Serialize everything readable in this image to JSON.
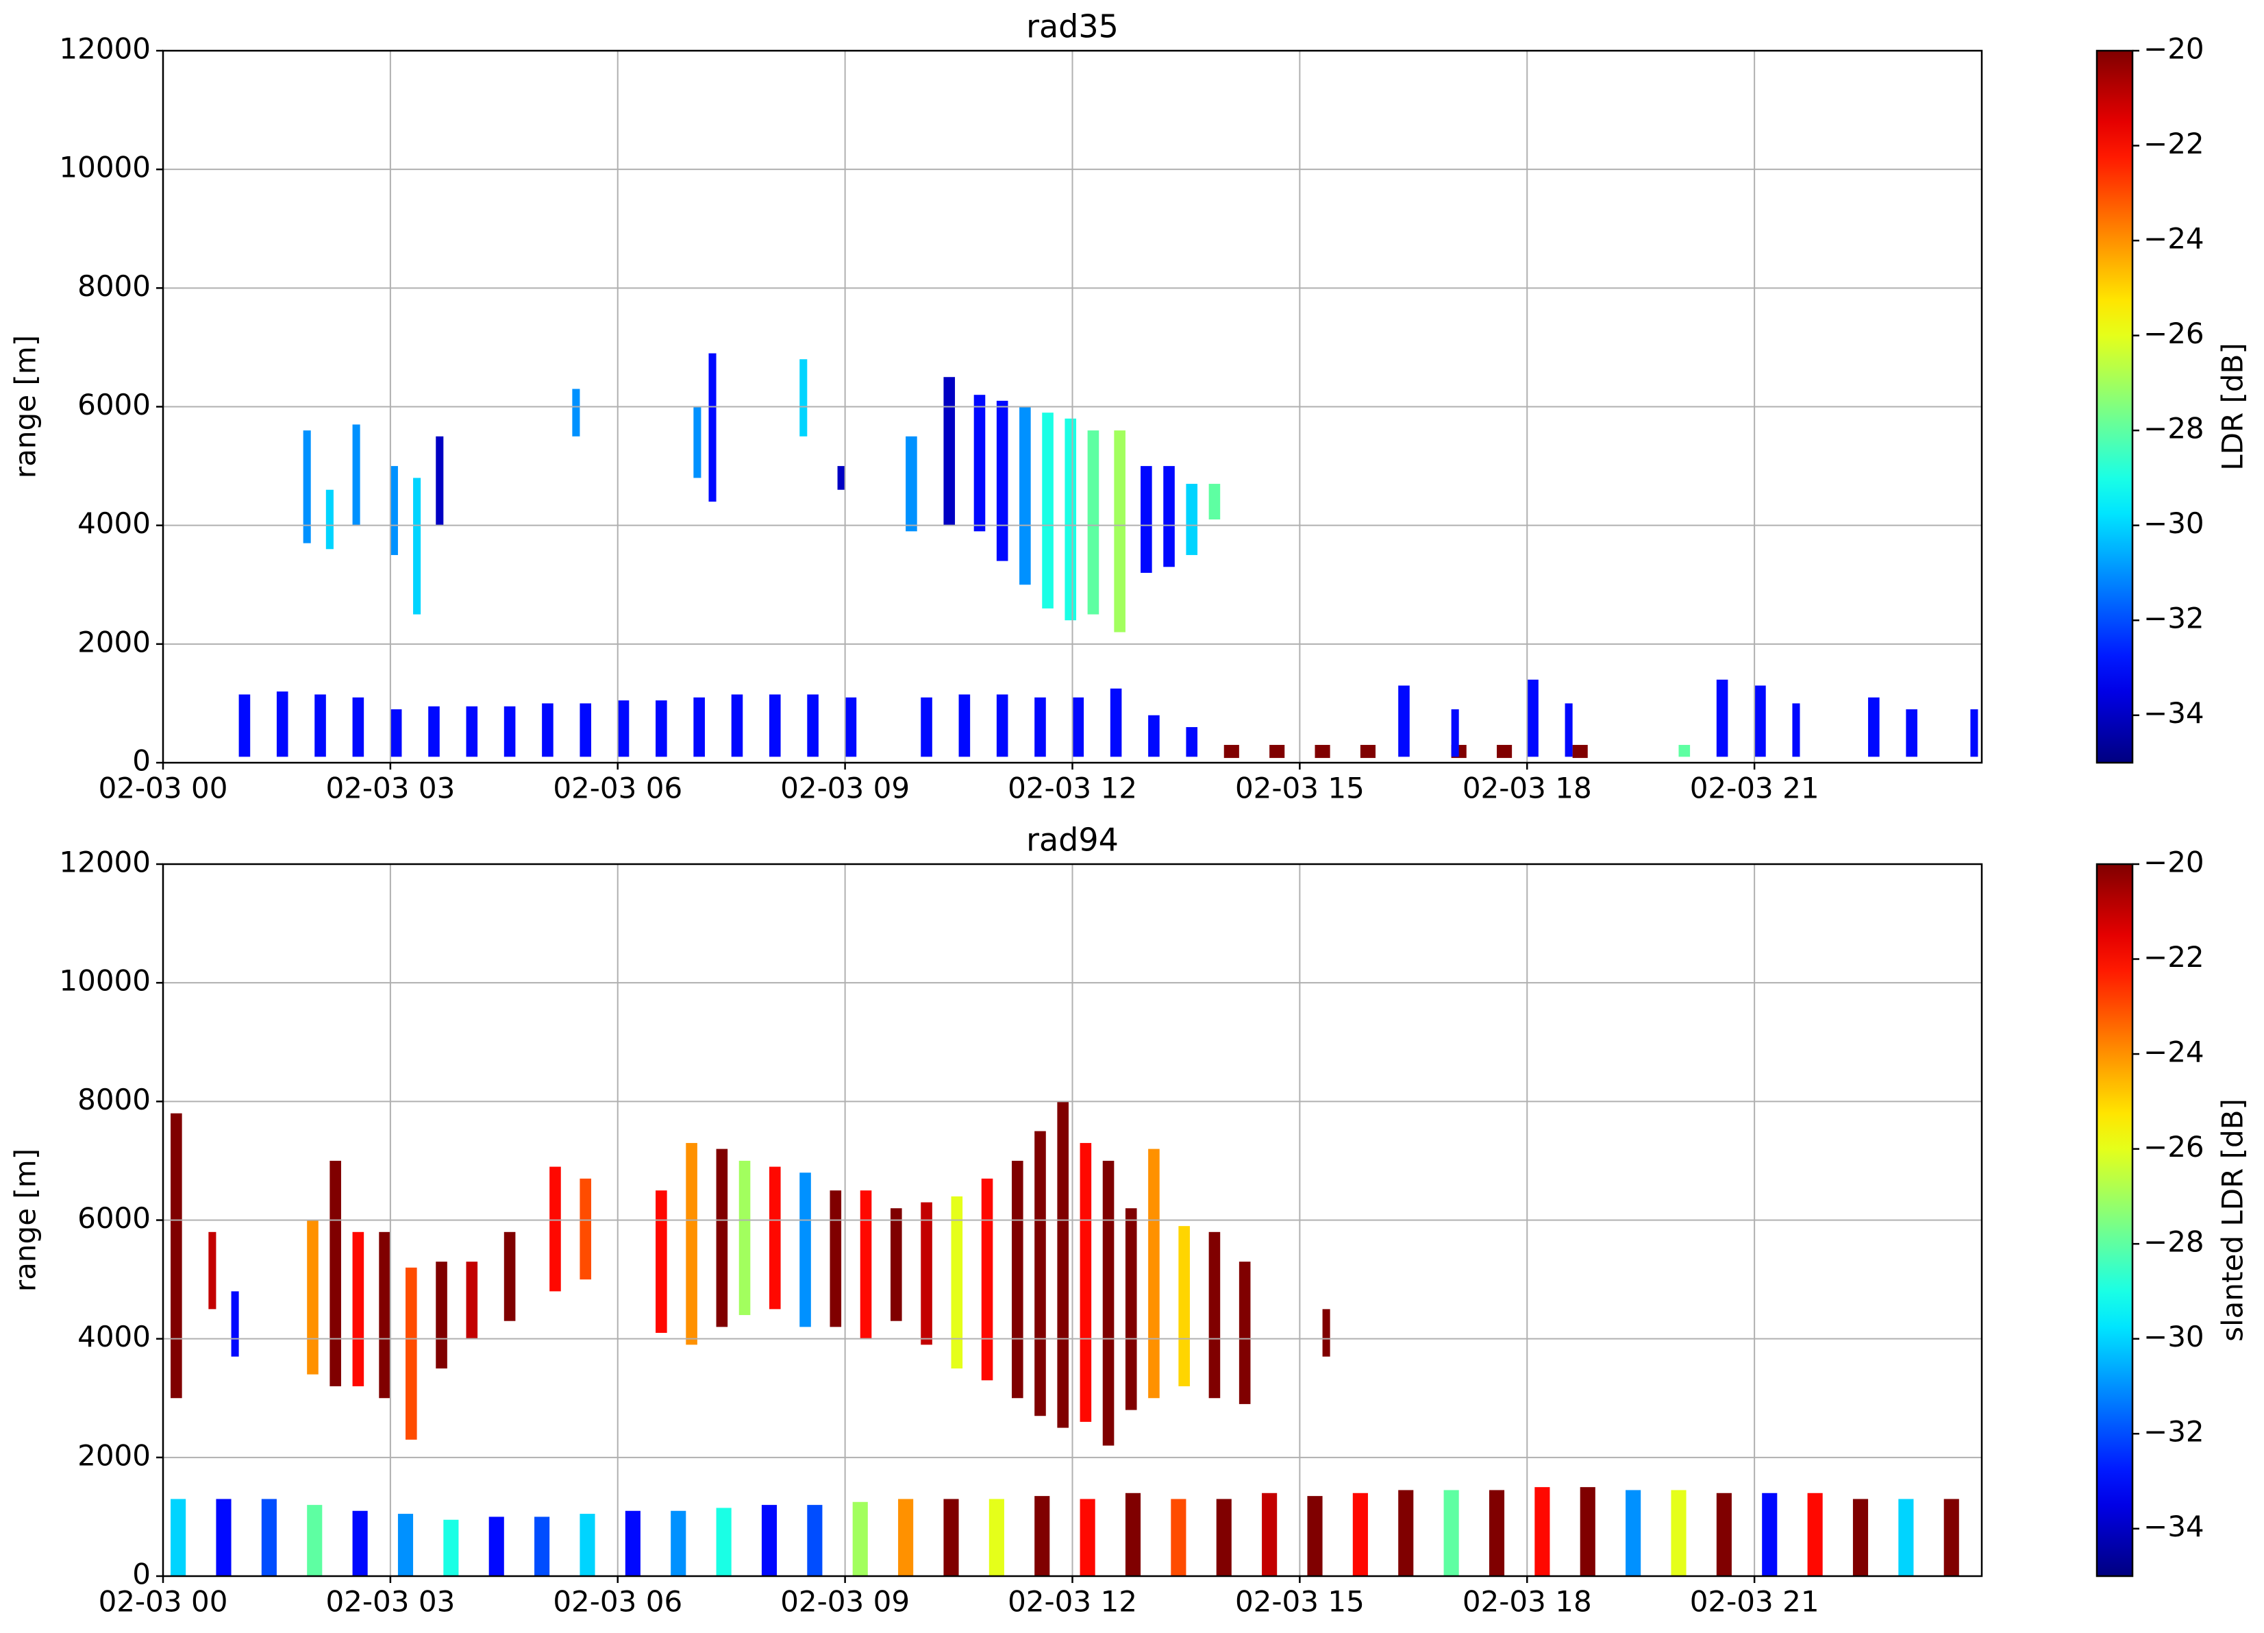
{
  "chart_data": [
    {
      "type": "heatmap",
      "title": "rad35",
      "ylabel": "range [m]",
      "colorbar_label": "LDR [dB]",
      "colormap": "jet",
      "grid": true,
      "xlim": [
        0,
        24
      ],
      "xticks": [
        {
          "value": 0,
          "label": "02-03 00"
        },
        {
          "value": 3,
          "label": "02-03 03"
        },
        {
          "value": 6,
          "label": "02-03 06"
        },
        {
          "value": 9,
          "label": "02-03 09"
        },
        {
          "value": 12,
          "label": "02-03 12"
        },
        {
          "value": 15,
          "label": "02-03 15"
        },
        {
          "value": 18,
          "label": "02-03 18"
        },
        {
          "value": 21,
          "label": "02-03 21"
        }
      ],
      "ylim": [
        0,
        12000
      ],
      "yticks": [
        0,
        2000,
        4000,
        6000,
        8000,
        10000,
        12000
      ],
      "clim": [
        -35,
        -20
      ],
      "cticks": [
        {
          "value": -34,
          "label": "−34"
        },
        {
          "value": -32,
          "label": "−32"
        },
        {
          "value": -30,
          "label": "−30"
        },
        {
          "value": -28,
          "label": "−28"
        },
        {
          "value": -26,
          "label": "−26"
        },
        {
          "value": -24,
          "label": "−24"
        },
        {
          "value": -22,
          "label": "−22"
        },
        {
          "value": -20,
          "label": "−20"
        }
      ],
      "cells": [
        [
          1.0,
          1.15,
          100,
          1150,
          -33
        ],
        [
          1.5,
          1.65,
          100,
          1200,
          -33
        ],
        [
          2.0,
          2.15,
          100,
          1150,
          -33
        ],
        [
          2.5,
          2.65,
          100,
          1100,
          -33
        ],
        [
          3.0,
          3.15,
          100,
          900,
          -33
        ],
        [
          3.5,
          3.65,
          100,
          950,
          -33
        ],
        [
          4.0,
          4.15,
          100,
          950,
          -33
        ],
        [
          4.5,
          4.65,
          100,
          950,
          -33
        ],
        [
          5.0,
          5.15,
          100,
          1000,
          -33
        ],
        [
          5.5,
          5.65,
          100,
          1000,
          -33
        ],
        [
          6.0,
          6.15,
          100,
          1050,
          -33
        ],
        [
          6.5,
          6.65,
          100,
          1050,
          -33
        ],
        [
          7.0,
          7.15,
          100,
          1100,
          -33
        ],
        [
          7.5,
          7.65,
          100,
          1150,
          -33
        ],
        [
          8.0,
          8.15,
          100,
          1150,
          -33
        ],
        [
          8.5,
          8.65,
          100,
          1150,
          -33
        ],
        [
          9.0,
          9.15,
          100,
          1100,
          -33
        ],
        [
          10.0,
          10.15,
          100,
          1100,
          -33
        ],
        [
          10.5,
          10.65,
          100,
          1150,
          -33
        ],
        [
          11.0,
          11.15,
          100,
          1150,
          -33
        ],
        [
          11.5,
          11.65,
          100,
          1100,
          -33
        ],
        [
          12.0,
          12.15,
          100,
          1100,
          -33
        ],
        [
          12.5,
          12.65,
          100,
          1250,
          -33
        ],
        [
          13.0,
          13.15,
          100,
          800,
          -33
        ],
        [
          13.5,
          13.65,
          100,
          600,
          -33
        ],
        [
          14.0,
          14.2,
          80,
          300,
          -20
        ],
        [
          14.6,
          14.8,
          80,
          300,
          -20
        ],
        [
          15.2,
          15.4,
          80,
          300,
          -20
        ],
        [
          15.8,
          16.0,
          80,
          300,
          -20
        ],
        [
          17.0,
          17.2,
          80,
          300,
          -20
        ],
        [
          17.6,
          17.8,
          80,
          300,
          -20
        ],
        [
          18.6,
          18.8,
          80,
          300,
          -20
        ],
        [
          16.3,
          16.45,
          100,
          1300,
          -33
        ],
        [
          17.0,
          17.1,
          100,
          900,
          -33
        ],
        [
          18.0,
          18.15,
          100,
          1400,
          -33
        ],
        [
          18.5,
          18.6,
          100,
          1000,
          -33
        ],
        [
          20.0,
          20.15,
          100,
          300,
          -28
        ],
        [
          20.5,
          20.65,
          100,
          1400,
          -33
        ],
        [
          21.0,
          21.15,
          100,
          1300,
          -33
        ],
        [
          21.5,
          21.6,
          100,
          1000,
          -33
        ],
        [
          22.5,
          22.65,
          100,
          1100,
          -33
        ],
        [
          23.0,
          23.15,
          100,
          900,
          -33
        ],
        [
          23.85,
          23.95,
          100,
          900,
          -33
        ],
        [
          1.85,
          1.95,
          3700,
          5600,
          -31
        ],
        [
          2.15,
          2.25,
          3600,
          4600,
          -30
        ],
        [
          2.5,
          2.6,
          4000,
          5700,
          -31
        ],
        [
          3.0,
          3.1,
          3500,
          5000,
          -31
        ],
        [
          3.3,
          3.4,
          2500,
          4800,
          -30
        ],
        [
          3.6,
          3.7,
          4000,
          5500,
          -34
        ],
        [
          5.4,
          5.5,
          5500,
          6300,
          -31
        ],
        [
          7.0,
          7.1,
          4800,
          6000,
          -31
        ],
        [
          7.2,
          7.3,
          4400,
          6900,
          -33
        ],
        [
          8.4,
          8.5,
          5500,
          6800,
          -30
        ],
        [
          8.9,
          9.0,
          4600,
          5000,
          -34
        ],
        [
          9.8,
          9.95,
          3900,
          5500,
          -31
        ],
        [
          10.3,
          10.45,
          4000,
          6500,
          -34
        ],
        [
          10.7,
          10.85,
          3900,
          6200,
          -33
        ],
        [
          11.0,
          11.15,
          3400,
          6100,
          -33
        ],
        [
          11.3,
          11.45,
          3000,
          6000,
          -31
        ],
        [
          11.6,
          11.75,
          2600,
          5900,
          -29
        ],
        [
          11.9,
          12.05,
          2400,
          5800,
          -29
        ],
        [
          12.2,
          12.35,
          2500,
          5600,
          -28
        ],
        [
          12.55,
          12.7,
          2200,
          5600,
          -27
        ],
        [
          12.9,
          13.05,
          3200,
          5000,
          -33
        ],
        [
          13.2,
          13.35,
          3300,
          5000,
          -33
        ],
        [
          13.5,
          13.65,
          3500,
          4700,
          -30
        ],
        [
          13.8,
          13.95,
          4100,
          4700,
          -28
        ]
      ]
    },
    {
      "type": "heatmap",
      "title": "rad94",
      "ylabel": "range [m]",
      "colorbar_label": "slanted LDR [dB]",
      "colormap": "jet",
      "grid": true,
      "xlim": [
        0,
        24
      ],
      "xticks": [
        {
          "value": 0,
          "label": "02-03 00"
        },
        {
          "value": 3,
          "label": "02-03 03"
        },
        {
          "value": 6,
          "label": "02-03 06"
        },
        {
          "value": 9,
          "label": "02-03 09"
        },
        {
          "value": 12,
          "label": "02-03 12"
        },
        {
          "value": 15,
          "label": "02-03 15"
        },
        {
          "value": 18,
          "label": "02-03 18"
        },
        {
          "value": 21,
          "label": "02-03 21"
        }
      ],
      "ylim": [
        0,
        12000
      ],
      "yticks": [
        0,
        2000,
        4000,
        6000,
        8000,
        10000,
        12000
      ],
      "clim": [
        -35,
        -20
      ],
      "cticks": [
        {
          "value": -34,
          "label": "−34"
        },
        {
          "value": -32,
          "label": "−32"
        },
        {
          "value": -30,
          "label": "−30"
        },
        {
          "value": -28,
          "label": "−28"
        },
        {
          "value": -26,
          "label": "−26"
        },
        {
          "value": -24,
          "label": "−24"
        },
        {
          "value": -22,
          "label": "−22"
        },
        {
          "value": -20,
          "label": "−20"
        }
      ],
      "cells": [
        [
          0.1,
          0.3,
          0,
          1300,
          -30
        ],
        [
          0.7,
          0.9,
          0,
          1300,
          -33
        ],
        [
          1.3,
          1.5,
          0,
          1300,
          -32
        ],
        [
          1.9,
          2.1,
          0,
          1200,
          -28
        ],
        [
          2.5,
          2.7,
          0,
          1100,
          -33
        ],
        [
          3.1,
          3.3,
          0,
          1050,
          -31
        ],
        [
          3.7,
          3.9,
          0,
          950,
          -29
        ],
        [
          4.3,
          4.5,
          0,
          1000,
          -33
        ],
        [
          4.9,
          5.1,
          0,
          1000,
          -32
        ],
        [
          5.5,
          5.7,
          0,
          1050,
          -30
        ],
        [
          6.1,
          6.3,
          0,
          1100,
          -33
        ],
        [
          6.7,
          6.9,
          0,
          1100,
          -31
        ],
        [
          7.3,
          7.5,
          0,
          1150,
          -29
        ],
        [
          7.9,
          8.1,
          0,
          1200,
          -33
        ],
        [
          8.5,
          8.7,
          0,
          1200,
          -32
        ],
        [
          9.1,
          9.3,
          0,
          1250,
          -27
        ],
        [
          9.7,
          9.9,
          0,
          1300,
          -24
        ],
        [
          10.3,
          10.5,
          0,
          1300,
          -20
        ],
        [
          10.9,
          11.1,
          0,
          1300,
          -26
        ],
        [
          11.5,
          11.7,
          0,
          1350,
          -20
        ],
        [
          12.1,
          12.3,
          0,
          1300,
          -22
        ],
        [
          12.7,
          12.9,
          0,
          1400,
          -20
        ],
        [
          13.3,
          13.5,
          0,
          1300,
          -23
        ],
        [
          13.9,
          14.1,
          0,
          1300,
          -20
        ],
        [
          14.5,
          14.7,
          0,
          1400,
          -21
        ],
        [
          15.1,
          15.3,
          0,
          1350,
          -20
        ],
        [
          15.7,
          15.9,
          0,
          1400,
          -22
        ],
        [
          16.3,
          16.5,
          0,
          1450,
          -20
        ],
        [
          16.9,
          17.1,
          0,
          1450,
          -28
        ],
        [
          17.5,
          17.7,
          0,
          1450,
          -20
        ],
        [
          18.1,
          18.3,
          0,
          1500,
          -22
        ],
        [
          18.7,
          18.9,
          0,
          1500,
          -20
        ],
        [
          19.3,
          19.5,
          0,
          1450,
          -31
        ],
        [
          19.9,
          20.1,
          0,
          1450,
          -26
        ],
        [
          20.5,
          20.7,
          0,
          1400,
          -20
        ],
        [
          21.1,
          21.3,
          0,
          1400,
          -33
        ],
        [
          21.7,
          21.9,
          0,
          1400,
          -22
        ],
        [
          22.3,
          22.5,
          0,
          1300,
          -20
        ],
        [
          22.9,
          23.1,
          0,
          1300,
          -30
        ],
        [
          23.5,
          23.7,
          0,
          1300,
          -20
        ],
        [
          0.1,
          0.25,
          3000,
          7800,
          -20
        ],
        [
          0.6,
          0.7,
          4500,
          5800,
          -21
        ],
        [
          0.9,
          1.0,
          3700,
          4800,
          -33
        ],
        [
          1.9,
          2.05,
          3400,
          6000,
          -24
        ],
        [
          2.2,
          2.35,
          3200,
          7000,
          -20
        ],
        [
          2.5,
          2.65,
          3200,
          5800,
          -22
        ],
        [
          2.85,
          3.0,
          3000,
          5800,
          -20
        ],
        [
          3.2,
          3.35,
          2300,
          5200,
          -23
        ],
        [
          3.6,
          3.75,
          3500,
          5300,
          -20
        ],
        [
          4.0,
          4.15,
          4000,
          5300,
          -21
        ],
        [
          4.5,
          4.65,
          4300,
          5800,
          -20
        ],
        [
          5.1,
          5.25,
          4800,
          6900,
          -22
        ],
        [
          5.5,
          5.65,
          5000,
          6700,
          -23
        ],
        [
          6.5,
          6.65,
          4100,
          6500,
          -22
        ],
        [
          6.9,
          7.05,
          3900,
          7300,
          -24
        ],
        [
          7.3,
          7.45,
          4200,
          7200,
          -20
        ],
        [
          7.6,
          7.75,
          4400,
          7000,
          -27
        ],
        [
          8.0,
          8.15,
          4500,
          6900,
          -22
        ],
        [
          8.4,
          8.55,
          4200,
          6800,
          -31
        ],
        [
          8.8,
          8.95,
          4200,
          6500,
          -20
        ],
        [
          9.2,
          9.35,
          4000,
          6500,
          -22
        ],
        [
          9.6,
          9.75,
          4300,
          6200,
          -20
        ],
        [
          10.0,
          10.15,
          3900,
          6300,
          -21
        ],
        [
          10.4,
          10.55,
          3500,
          6400,
          -26
        ],
        [
          10.8,
          10.95,
          3300,
          6700,
          -22
        ],
        [
          11.2,
          11.35,
          3000,
          7000,
          -20
        ],
        [
          11.5,
          11.65,
          2700,
          7500,
          -20
        ],
        [
          11.8,
          11.95,
          2500,
          8000,
          -20
        ],
        [
          12.1,
          12.25,
          2600,
          7300,
          -22
        ],
        [
          12.4,
          12.55,
          2200,
          7000,
          -20
        ],
        [
          12.7,
          12.85,
          2800,
          6200,
          -20
        ],
        [
          13.0,
          13.15,
          3000,
          7200,
          -24
        ],
        [
          13.4,
          13.55,
          3200,
          5900,
          -25
        ],
        [
          13.8,
          13.95,
          3000,
          5800,
          -20
        ],
        [
          14.2,
          14.35,
          2900,
          5300,
          -20
        ],
        [
          15.3,
          15.4,
          3700,
          4500,
          -20
        ]
      ]
    }
  ]
}
